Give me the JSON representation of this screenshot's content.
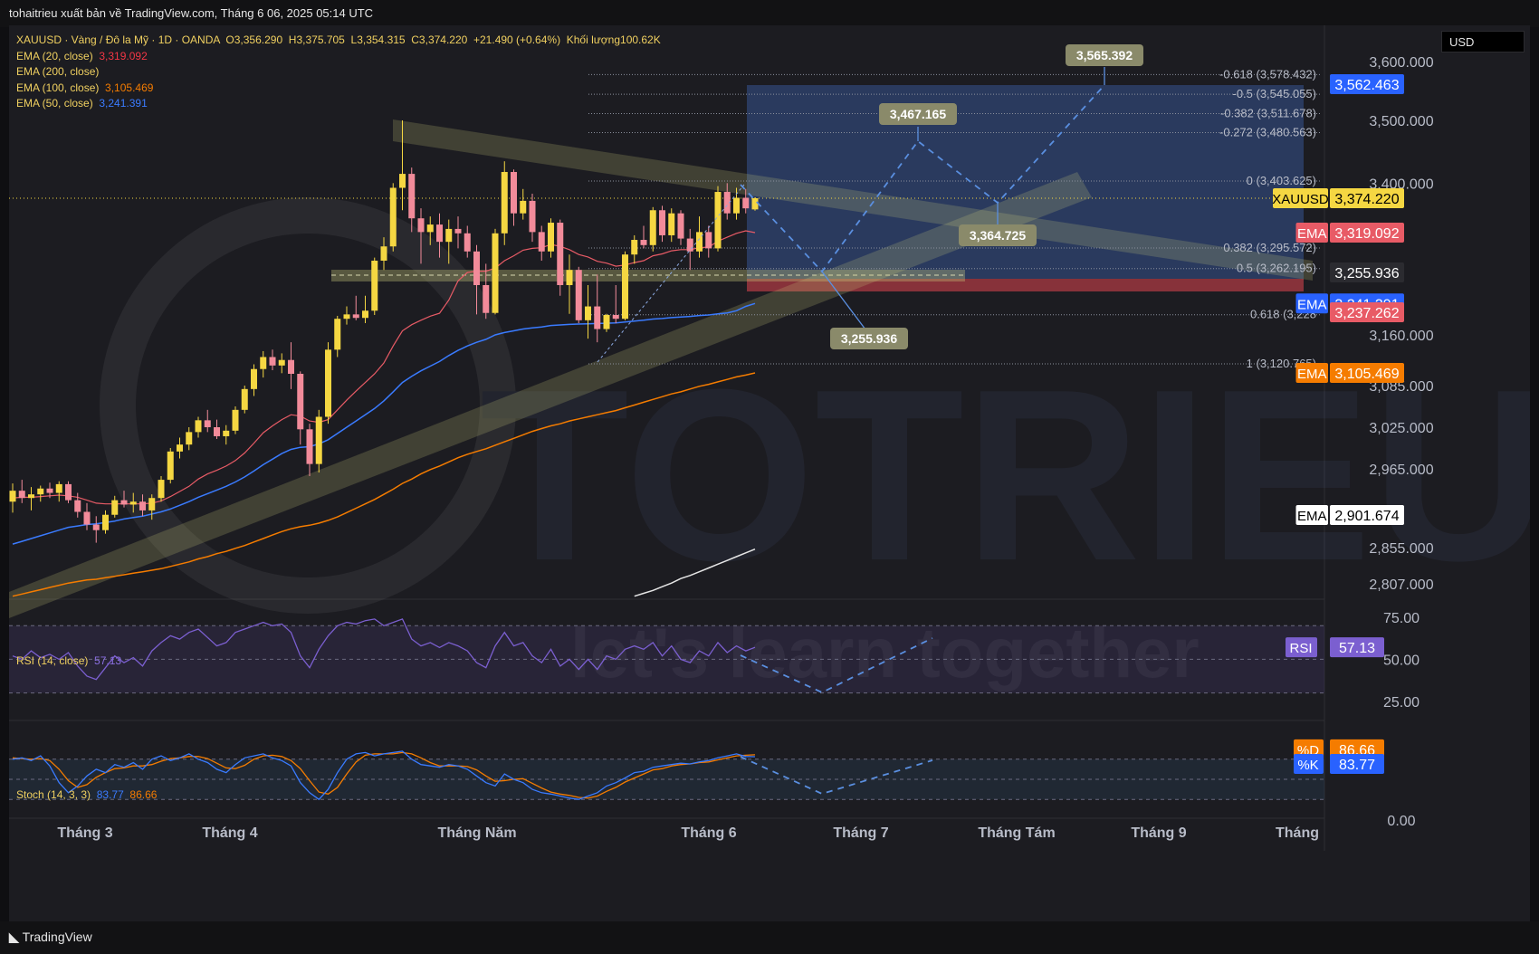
{
  "header": {
    "text": "tohaitrieu xuất bản về TradingView.com, Tháng 6 06, 2025 05:14 UTC"
  },
  "footer": {
    "brand": "TradingView"
  },
  "currency": "USD",
  "legend": {
    "symbol": "XAUUSD · Vàng / Đô la Mỹ · 1D · OANDA",
    "open": "O3,356.290",
    "high": "H3,375.705",
    "low": "L3,354.315",
    "close": "C3,374.220",
    "change": "+21.490 (+0.64%)",
    "volume_label": "Khối lượng",
    "volume": "100.62K",
    "emas": [
      {
        "name": "EMA (20, close)",
        "value": "3,319.092",
        "color": "#f23645"
      },
      {
        "name": "EMA (200, close)",
        "value": "",
        "color": "#e0e0e0"
      },
      {
        "name": "EMA (100, close)",
        "value": "3,105.469",
        "color": "#f57c00"
      },
      {
        "name": "EMA (50, close)",
        "value": "3,241.391",
        "color": "#3a7bff"
      }
    ]
  },
  "rsi": {
    "label": "RSI (14, close)",
    "value": "57.13"
  },
  "stoch": {
    "label": "Stoch (14, 3, 3)",
    "k": "83.77",
    "d": "86.66"
  },
  "chart_data": {
    "type": "candlestick",
    "symbol": "XAUUSD",
    "interval": "1D",
    "price_axis_ticks": [
      "3,600.000",
      "3,500.000",
      "3,400.000",
      "3,160.000",
      "3,085.000",
      "3,025.000",
      "2,965.000",
      "2,855.000",
      "2,807.000"
    ],
    "price_ticks": [
      3600,
      3500,
      3400,
      3160,
      3085,
      3025,
      2965,
      2855,
      2807
    ],
    "price_labels": [
      {
        "text": "3,562.463",
        "value": 3562.463,
        "bg": "#2962ff",
        "fg": "#ffffff"
      },
      {
        "text": "3,374.220",
        "value": 3374.22,
        "bg": "#f5d742",
        "fg": "#000000",
        "tag": "XAUUSD"
      },
      {
        "text": "3,319.092",
        "value": 3319.092,
        "bg": "#e85b66",
        "fg": "#ffffff",
        "tag": "EMA"
      },
      {
        "text": "3,255.936",
        "value": 3255.936,
        "bg": "#2b2b30",
        "fg": "#ffffff"
      },
      {
        "text": "3,241.391",
        "value": 3241.391,
        "bg": "#2962ff",
        "fg": "#ffffff",
        "tag": "EMA"
      },
      {
        "text": "3,237.262",
        "value": 3237.262,
        "bg": "#e85b66",
        "fg": "#ffffff"
      },
      {
        "text": "3,105.469",
        "value": 3105.469,
        "bg": "#f57c00",
        "fg": "#ffffff",
        "tag": "EMA"
      },
      {
        "text": "2,901.674",
        "value": 2901.674,
        "bg": "#ffffff",
        "fg": "#000000",
        "tag": "EMA"
      }
    ],
    "time_axis": [
      "Tháng 3",
      "Tháng 4",
      "Tháng Năm",
      "Tháng 6",
      "Tháng 7",
      "Tháng Tám",
      "Tháng 9",
      "Tháng"
    ],
    "fibonacci": [
      {
        "label": "-0.618 (3,578.432)",
        "price": 3578.432
      },
      {
        "label": "-0.5 (3,545.055)",
        "price": 3545.055
      },
      {
        "label": "-0.382 (3,511.678)",
        "price": 3511.678
      },
      {
        "label": "-0.272 (3,480.563)",
        "price": 3480.563
      },
      {
        "label": "0 (3,403.625)",
        "price": 3403.625
      },
      {
        "label": "0.382 (3,295.572)",
        "price": 3295.572
      },
      {
        "label": "0.5 (3,262.195)",
        "price": 3262.195
      },
      {
        "label": "0.618 (3,228",
        "price": 3228.8
      },
      {
        "label": "1 (3,120.765)",
        "price": 3120.765
      }
    ],
    "projection_labels": [
      {
        "text": "3,565.392",
        "value": 3565.392
      },
      {
        "text": "3,467.165",
        "value": 3467.165
      },
      {
        "text": "3,364.725",
        "value": 3364.725
      },
      {
        "text": "3,255.936",
        "value": 3255.936
      }
    ],
    "candles": [
      [
        2920,
        2945,
        2905,
        2935
      ],
      [
        2935,
        2950,
        2918,
        2925
      ],
      [
        2925,
        2940,
        2908,
        2930
      ],
      [
        2930,
        2942,
        2920,
        2938
      ],
      [
        2938,
        2946,
        2925,
        2932
      ],
      [
        2932,
        2948,
        2920,
        2944
      ],
      [
        2944,
        2948,
        2918,
        2922
      ],
      [
        2922,
        2932,
        2898,
        2906
      ],
      [
        2906,
        2918,
        2880,
        2888
      ],
      [
        2888,
        2900,
        2862,
        2880
      ],
      [
        2880,
        2908,
        2875,
        2902
      ],
      [
        2902,
        2928,
        2898,
        2922
      ],
      [
        2922,
        2935,
        2912,
        2916
      ],
      [
        2916,
        2932,
        2905,
        2920
      ],
      [
        2920,
        2930,
        2900,
        2908
      ],
      [
        2908,
        2930,
        2895,
        2925
      ],
      [
        2925,
        2955,
        2920,
        2950
      ],
      [
        2950,
        2995,
        2945,
        2990
      ],
      [
        2990,
        3010,
        2980,
        3000
      ],
      [
        3000,
        3025,
        2992,
        3018
      ],
      [
        3018,
        3040,
        3010,
        3035
      ],
      [
        3035,
        3050,
        3018,
        3025
      ],
      [
        3025,
        3036,
        3008,
        3012
      ],
      [
        3012,
        3028,
        3000,
        3020
      ],
      [
        3020,
        3055,
        3015,
        3050
      ],
      [
        3050,
        3085,
        3045,
        3080
      ],
      [
        3080,
        3120,
        3070,
        3112
      ],
      [
        3112,
        3138,
        3098,
        3130
      ],
      [
        3130,
        3140,
        3110,
        3118
      ],
      [
        3118,
        3135,
        3105,
        3126
      ],
      [
        3126,
        3150,
        3080,
        3104
      ],
      [
        3104,
        3108,
        3000,
        3022
      ],
      [
        3022,
        3030,
        2955,
        2972
      ],
      [
        2972,
        3050,
        2960,
        3040
      ],
      [
        3040,
        3150,
        3030,
        3140
      ],
      [
        3140,
        3225,
        3130,
        3215
      ],
      [
        3215,
        3240,
        3195,
        3230
      ],
      [
        3230,
        3245,
        3210,
        3218
      ],
      [
        3218,
        3245,
        3200,
        3238
      ],
      [
        3238,
        3280,
        3228,
        3275
      ],
      [
        3275,
        3312,
        3260,
        3298
      ],
      [
        3298,
        3400,
        3290,
        3392
      ],
      [
        3392,
        3500,
        3355,
        3415
      ],
      [
        3415,
        3425,
        3320,
        3342
      ],
      [
        3342,
        3358,
        3270,
        3320
      ],
      [
        3320,
        3345,
        3300,
        3332
      ],
      [
        3332,
        3350,
        3280,
        3305
      ],
      [
        3305,
        3340,
        3270,
        3325
      ],
      [
        3325,
        3345,
        3295,
        3318
      ],
      [
        3318,
        3330,
        3280,
        3290
      ],
      [
        3290,
        3300,
        3230,
        3250
      ],
      [
        3250,
        3270,
        3215,
        3235
      ],
      [
        3235,
        3325,
        3230,
        3318
      ],
      [
        3318,
        3435,
        3300,
        3418
      ],
      [
        3418,
        3422,
        3330,
        3350
      ],
      [
        3350,
        3390,
        3340,
        3370
      ],
      [
        3370,
        3382,
        3305,
        3320
      ],
      [
        3320,
        3330,
        3275,
        3290
      ],
      [
        3290,
        3342,
        3280,
        3335
      ],
      [
        3335,
        3340,
        3245,
        3250
      ],
      [
        3250,
        3285,
        3232,
        3260
      ],
      [
        3260,
        3265,
        3200,
        3210
      ],
      [
        3210,
        3250,
        3155,
        3240
      ],
      [
        3240,
        3255,
        3150,
        3180
      ],
      [
        3180,
        3232,
        3170,
        3228
      ],
      [
        3228,
        3250,
        3200,
        3215
      ],
      [
        3215,
        3290,
        3210,
        3285
      ],
      [
        3285,
        3315,
        3270,
        3308
      ],
      [
        3308,
        3330,
        3295,
        3300
      ],
      [
        3300,
        3360,
        3290,
        3355
      ],
      [
        3355,
        3362,
        3305,
        3315
      ],
      [
        3315,
        3358,
        3305,
        3350
      ],
      [
        3350,
        3355,
        3300,
        3310
      ],
      [
        3310,
        3325,
        3260,
        3290
      ],
      [
        3290,
        3345,
        3280,
        3320
      ],
      [
        3320,
        3330,
        3280,
        3295
      ],
      [
        3295,
        3395,
        3290,
        3385
      ],
      [
        3385,
        3400,
        3340,
        3350
      ],
      [
        3350,
        3392,
        3340,
        3375
      ],
      [
        3375,
        3390,
        3350,
        3358
      ],
      [
        3356.29,
        3375.705,
        3354.315,
        3374.22
      ]
    ],
    "ema20": [
      2925,
      2926,
      2926,
      2927,
      2928,
      2929,
      2928,
      2926,
      2922,
      2918,
      2917,
      2917,
      2917,
      2917,
      2917,
      2918,
      2921,
      2927,
      2934,
      2941,
      2951,
      2958,
      2963,
      2969,
      2977,
      2988,
      3002,
      3017,
      3027,
      3036,
      3043,
      3041,
      3034,
      3032,
      3036,
      3050,
      3064,
      3077,
      3090,
      3104,
      3122,
      3145,
      3174,
      3195,
      3210,
      3224,
      3234,
      3243,
      3252,
      3256,
      3258,
      3258,
      3263,
      3275,
      3283,
      3292,
      3295,
      3296,
      3301,
      3298,
      3293,
      3285,
      3281,
      3274,
      3271,
      3266,
      3268,
      3272,
      3275,
      3283,
      3286,
      3291,
      3293,
      3293,
      3296,
      3297,
      3306,
      3312,
      3318,
      3322,
      3319.092
    ],
    "ema50": [
      2860,
      2864,
      2868,
      2872,
      2876,
      2880,
      2884,
      2886,
      2888,
      2889,
      2891,
      2893,
      2896,
      2898,
      2900,
      2903,
      2906,
      2910,
      2915,
      2920,
      2926,
      2931,
      2936,
      2941,
      2947,
      2954,
      2962,
      2971,
      2979,
      2987,
      2993,
      2996,
      2997,
      3001,
      3007,
      3016,
      3025,
      3034,
      3043,
      3052,
      3063,
      3076,
      3090,
      3100,
      3109,
      3117,
      3124,
      3132,
      3139,
      3145,
      3150,
      3154,
      3160,
      3168,
      3174,
      3180,
      3184,
      3187,
      3192,
      3194,
      3196,
      3197,
      3198,
      3199,
      3200,
      3201,
      3204,
      3207,
      3210,
      3214,
      3216,
      3219,
      3221,
      3223,
      3226,
      3228,
      3232,
      3235,
      3238,
      3240,
      3241.391
    ],
    "ema100": [
      2790,
      2793,
      2796,
      2799,
      2802,
      2805,
      2808,
      2810,
      2812,
      2813,
      2815,
      2817,
      2819,
      2821,
      2823,
      2825,
      2827,
      2830,
      2833,
      2836,
      2840,
      2843,
      2847,
      2850,
      2854,
      2858,
      2863,
      2868,
      2873,
      2878,
      2882,
      2885,
      2887,
      2890,
      2894,
      2899,
      2905,
      2911,
      2917,
      2923,
      2930,
      2937,
      2945,
      2951,
      2958,
      2964,
      2969,
      2975,
      2981,
      2986,
      2990,
      2994,
      2999,
      3004,
      3009,
      3014,
      3019,
      3023,
      3027,
      3030,
      3034,
      3037,
      3040,
      3043,
      3046,
      3049,
      3053,
      3057,
      3061,
      3065,
      3069,
      3073,
      3076,
      3080,
      3084,
      3087,
      3091,
      3095,
      3099,
      3102,
      3105.469
    ],
    "ema200_start_index": 67,
    "ema200": [
      2790,
      2794,
      2798,
      2803,
      2808,
      2814,
      2818,
      2823,
      2828,
      2833,
      2838,
      2843,
      2848,
      2853
    ],
    "rsi": [
      52,
      50,
      55,
      51,
      53,
      50,
      54,
      46,
      40,
      38,
      45,
      52,
      48,
      51,
      46,
      55,
      60,
      64,
      62,
      66,
      68,
      63,
      58,
      60,
      66,
      68,
      70,
      72,
      70,
      71,
      66,
      52,
      45,
      56,
      64,
      70,
      72,
      71,
      73,
      74,
      70,
      72,
      74,
      62,
      58,
      60,
      57,
      60,
      58,
      55,
      48,
      45,
      58,
      66,
      58,
      60,
      52,
      48,
      56,
      46,
      50,
      44,
      50,
      44,
      52,
      50,
      56,
      58,
      56,
      60,
      52,
      58,
      50,
      48,
      55,
      52,
      60,
      54,
      58,
      55,
      57.13
    ],
    "stoch": {
      "k": [
        80,
        82,
        78,
        85,
        70,
        45,
        30,
        40,
        55,
        65,
        60,
        72,
        68,
        75,
        65,
        80,
        85,
        78,
        82,
        88,
        80,
        75,
        65,
        60,
        72,
        82,
        85,
        88,
        82,
        78,
        70,
        45,
        30,
        20,
        35,
        60,
        80,
        88,
        90,
        85,
        88,
        90,
        92,
        80,
        72,
        70,
        68,
        72,
        70,
        65,
        55,
        45,
        40,
        58,
        50,
        45,
        35,
        30,
        28,
        25,
        22,
        20,
        25,
        30,
        40,
        45,
        52,
        60,
        62,
        68,
        70,
        72,
        74,
        73,
        76,
        78,
        82,
        85,
        88,
        84,
        83.77
      ],
      "d": [
        82,
        81,
        80,
        81,
        78,
        65,
        48,
        38,
        42,
        53,
        60,
        66,
        67,
        70,
        70,
        72,
        77,
        81,
        82,
        84,
        84,
        81,
        74,
        67,
        66,
        71,
        80,
        85,
        86,
        84,
        78,
        66,
        48,
        31,
        28,
        38,
        58,
        76,
        86,
        88,
        88,
        88,
        90,
        88,
        82,
        75,
        70,
        70,
        70,
        69,
        64,
        55,
        47,
        48,
        50,
        51,
        44,
        37,
        31,
        28,
        26,
        23,
        22,
        25,
        32,
        38,
        46,
        52,
        58,
        64,
        66,
        70,
        72,
        73,
        75,
        76,
        79,
        82,
        85,
        86,
        86.66
      ]
    }
  }
}
